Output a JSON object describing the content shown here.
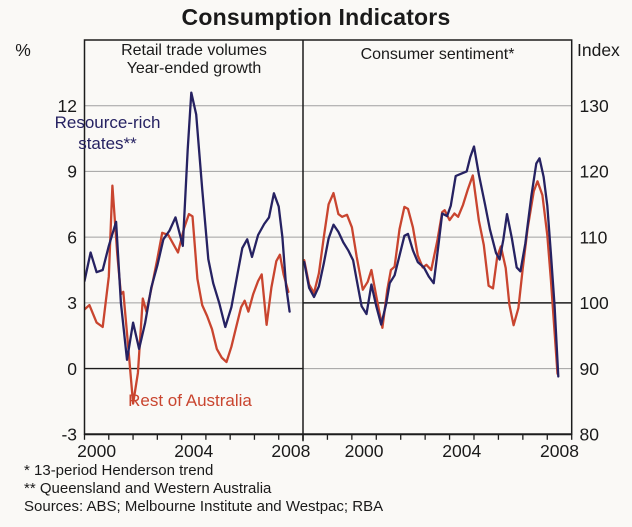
{
  "title": "Consumption Indicators",
  "footnotes": [
    "* 13-period Henderson trend",
    "** Queensland and Western Australia",
    "Sources: ABS; Melbourne Institute and Westpac; RBA"
  ],
  "colors": {
    "navy": "#262262",
    "red": "#c9452f",
    "grid": "#a0a0a0",
    "axis": "#1c1c1c",
    "background": "#faf9f6"
  },
  "chart_data": [
    {
      "type": "line",
      "panel": "left",
      "title": "Retail trade volumes",
      "subtitle": "Year-ended growth",
      "ylabel": "%",
      "ylim": [
        -3,
        15
      ],
      "yticks": [
        12,
        9,
        6,
        3,
        0,
        -3
      ],
      "ref_line": 0,
      "xlim": [
        2000,
        2009
      ],
      "grid": true,
      "xlabels": [
        {
          "text": "2000",
          "t": 2000.5
        },
        {
          "text": "2004",
          "t": 2004.5
        },
        {
          "text": "2008",
          "t": 2008.5
        }
      ],
      "series": [
        {
          "name": "Rest of Australia",
          "color": "#c9452f",
          "points": [
            [
              2000.0,
              2.7
            ],
            [
              2000.2,
              2.9
            ],
            [
              2000.5,
              2.1
            ],
            [
              2000.75,
              1.9
            ],
            [
              2001.0,
              4.2
            ],
            [
              2001.15,
              8.35
            ],
            [
              2001.35,
              5.2
            ],
            [
              2001.5,
              3.4
            ],
            [
              2001.6,
              3.5
            ],
            [
              2001.8,
              1.0
            ],
            [
              2002.0,
              -1.6
            ],
            [
              2002.2,
              -0.2
            ],
            [
              2002.4,
              3.2
            ],
            [
              2002.55,
              2.6
            ],
            [
              2002.8,
              3.9
            ],
            [
              2003.0,
              5.0
            ],
            [
              2003.2,
              6.2
            ],
            [
              2003.45,
              6.1
            ],
            [
              2003.65,
              5.7
            ],
            [
              2003.85,
              5.3
            ],
            [
              2004.1,
              6.4
            ],
            [
              2004.3,
              7.05
            ],
            [
              2004.45,
              6.95
            ],
            [
              2004.65,
              4.1
            ],
            [
              2004.85,
              2.9
            ],
            [
              2005.05,
              2.4
            ],
            [
              2005.25,
              1.8
            ],
            [
              2005.45,
              0.9
            ],
            [
              2005.65,
              0.5
            ],
            [
              2005.85,
              0.3
            ],
            [
              2006.05,
              1.0
            ],
            [
              2006.25,
              1.9
            ],
            [
              2006.45,
              2.8
            ],
            [
              2006.6,
              3.1
            ],
            [
              2006.75,
              2.6
            ],
            [
              2006.95,
              3.4
            ],
            [
              2007.15,
              4.0
            ],
            [
              2007.3,
              4.3
            ],
            [
              2007.5,
              2.0
            ],
            [
              2007.7,
              3.7
            ],
            [
              2007.9,
              4.9
            ],
            [
              2008.05,
              5.2
            ],
            [
              2008.2,
              4.3
            ],
            [
              2008.4,
              3.5
            ]
          ]
        },
        {
          "name": "Resource-rich states**",
          "color": "#262262",
          "points": [
            [
              2000.0,
              4.0
            ],
            [
              2000.25,
              5.3
            ],
            [
              2000.5,
              4.4
            ],
            [
              2000.75,
              4.5
            ],
            [
              2001.0,
              5.6
            ],
            [
              2001.3,
              6.7
            ],
            [
              2001.5,
              3.0
            ],
            [
              2001.75,
              0.4
            ],
            [
              2002.0,
              2.1
            ],
            [
              2002.25,
              0.9
            ],
            [
              2002.5,
              2.1
            ],
            [
              2002.75,
              3.7
            ],
            [
              2003.0,
              4.7
            ],
            [
              2003.25,
              5.9
            ],
            [
              2003.5,
              6.3
            ],
            [
              2003.75,
              6.9
            ],
            [
              2004.05,
              5.6
            ],
            [
              2004.25,
              10.0
            ],
            [
              2004.4,
              12.6
            ],
            [
              2004.6,
              11.6
            ],
            [
              2004.85,
              8.2
            ],
            [
              2005.1,
              5.0
            ],
            [
              2005.3,
              3.9
            ],
            [
              2005.55,
              3.0
            ],
            [
              2005.8,
              1.9
            ],
            [
              2006.05,
              2.8
            ],
            [
              2006.3,
              4.3
            ],
            [
              2006.5,
              5.5
            ],
            [
              2006.7,
              5.9
            ],
            [
              2006.9,
              5.1
            ],
            [
              2007.15,
              6.1
            ],
            [
              2007.4,
              6.6
            ],
            [
              2007.6,
              6.9
            ],
            [
              2007.8,
              8.0
            ],
            [
              2008.0,
              7.4
            ],
            [
              2008.15,
              6.0
            ],
            [
              2008.3,
              3.8
            ],
            [
              2008.45,
              2.6
            ]
          ]
        }
      ]
    },
    {
      "type": "line",
      "panel": "right",
      "title": "Consumer sentiment*",
      "ylabel": "Index",
      "ylim": [
        80,
        140
      ],
      "yticks": [
        130,
        120,
        110,
        100,
        90,
        80
      ],
      "ref_line": 100,
      "xlim": [
        1998,
        2009
      ],
      "grid": true,
      "xlabels": [
        {
          "text": "2000",
          "t": 2000.5
        },
        {
          "text": "2004",
          "t": 2004.5
        },
        {
          "text": "2008",
          "t": 2008.5
        }
      ],
      "series": [
        {
          "name": "Rest of Australia",
          "color": "#c9452f",
          "points": [
            [
              1998.05,
              106.5
            ],
            [
              1998.25,
              102.8
            ],
            [
              1998.45,
              101.5
            ],
            [
              1998.65,
              104.5
            ],
            [
              1998.85,
              110.0
            ],
            [
              1999.05,
              115.0
            ],
            [
              1999.25,
              116.7
            ],
            [
              1999.45,
              113.5
            ],
            [
              1999.6,
              113.1
            ],
            [
              1999.8,
              113.4
            ],
            [
              2000.0,
              111.5
            ],
            [
              2000.2,
              107.0
            ],
            [
              2000.45,
              102.0
            ],
            [
              2000.65,
              103.2
            ],
            [
              2000.8,
              105.0
            ],
            [
              2001.0,
              101.0
            ],
            [
              2001.25,
              96.2
            ],
            [
              2001.45,
              102.0
            ],
            [
              2001.6,
              105.0
            ],
            [
              2001.75,
              105.5
            ],
            [
              2001.95,
              111.2
            ],
            [
              2002.15,
              114.6
            ],
            [
              2002.3,
              114.3
            ],
            [
              2002.5,
              111.5
            ],
            [
              2002.7,
              107.2
            ],
            [
              2002.9,
              105.4
            ],
            [
              2003.05,
              105.8
            ],
            [
              2003.25,
              105.0
            ],
            [
              2003.5,
              109.5
            ],
            [
              2003.7,
              113.8
            ],
            [
              2003.8,
              114.1
            ],
            [
              2004.0,
              112.6
            ],
            [
              2004.2,
              113.6
            ],
            [
              2004.35,
              113.1
            ],
            [
              2004.55,
              114.9
            ],
            [
              2004.75,
              117.3
            ],
            [
              2004.95,
              119.4
            ],
            [
              2005.2,
              112.5
            ],
            [
              2005.4,
              108.8
            ],
            [
              2005.6,
              102.6
            ],
            [
              2005.78,
              102.2
            ],
            [
              2005.95,
              107.0
            ],
            [
              2006.1,
              108.6
            ],
            [
              2006.3,
              105.3
            ],
            [
              2006.45,
              99.7
            ],
            [
              2006.62,
              96.6
            ],
            [
              2006.82,
              99.2
            ],
            [
              2007.0,
              105.3
            ],
            [
              2007.2,
              111.4
            ],
            [
              2007.45,
              117.0
            ],
            [
              2007.6,
              118.5
            ],
            [
              2007.8,
              116.4
            ],
            [
              2008.0,
              110.3
            ],
            [
              2008.15,
              103.5
            ],
            [
              2008.3,
              95.5
            ],
            [
              2008.42,
              89.2
            ]
          ]
        },
        {
          "name": "Resource-rich states**",
          "color": "#262262",
          "points": [
            [
              1998.05,
              106.2
            ],
            [
              1998.25,
              102.3
            ],
            [
              1998.45,
              100.9
            ],
            [
              1998.65,
              102.5
            ],
            [
              1998.85,
              106.0
            ],
            [
              1999.05,
              109.8
            ],
            [
              1999.25,
              111.9
            ],
            [
              1999.45,
              110.8
            ],
            [
              1999.65,
              109.2
            ],
            [
              1999.85,
              108.0
            ],
            [
              2000.05,
              106.5
            ],
            [
              2000.2,
              103.5
            ],
            [
              2000.4,
              99.5
            ],
            [
              2000.6,
              98.3
            ],
            [
              2000.8,
              102.8
            ],
            [
              2001.0,
              99.5
            ],
            [
              2001.2,
              96.7
            ],
            [
              2001.4,
              99.8
            ],
            [
              2001.55,
              103.0
            ],
            [
              2001.75,
              104.2
            ],
            [
              2001.95,
              107.2
            ],
            [
              2002.15,
              110.2
            ],
            [
              2002.3,
              110.5
            ],
            [
              2002.5,
              108.0
            ],
            [
              2002.7,
              106.2
            ],
            [
              2002.95,
              105.4
            ],
            [
              2003.15,
              104.0
            ],
            [
              2003.35,
              103.0
            ],
            [
              2003.55,
              109.0
            ],
            [
              2003.7,
              113.6
            ],
            [
              2003.9,
              113.2
            ],
            [
              2004.05,
              114.8
            ],
            [
              2004.25,
              119.3
            ],
            [
              2004.5,
              119.7
            ],
            [
              2004.7,
              120.0
            ],
            [
              2004.85,
              122.2
            ],
            [
              2005.0,
              123.8
            ],
            [
              2005.2,
              119.5
            ],
            [
              2005.45,
              115.0
            ],
            [
              2005.65,
              111.2
            ],
            [
              2005.9,
              107.6
            ],
            [
              2006.05,
              106.6
            ],
            [
              2006.2,
              109.6
            ],
            [
              2006.35,
              113.5
            ],
            [
              2006.55,
              109.8
            ],
            [
              2006.75,
              105.4
            ],
            [
              2006.9,
              104.8
            ],
            [
              2007.1,
              109.0
            ],
            [
              2007.35,
              116.3
            ],
            [
              2007.55,
              121.2
            ],
            [
              2007.68,
              122.0
            ],
            [
              2007.85,
              119.2
            ],
            [
              2008.0,
              114.8
            ],
            [
              2008.15,
              107.5
            ],
            [
              2008.3,
              99.5
            ],
            [
              2008.45,
              88.8
            ]
          ]
        }
      ]
    }
  ]
}
